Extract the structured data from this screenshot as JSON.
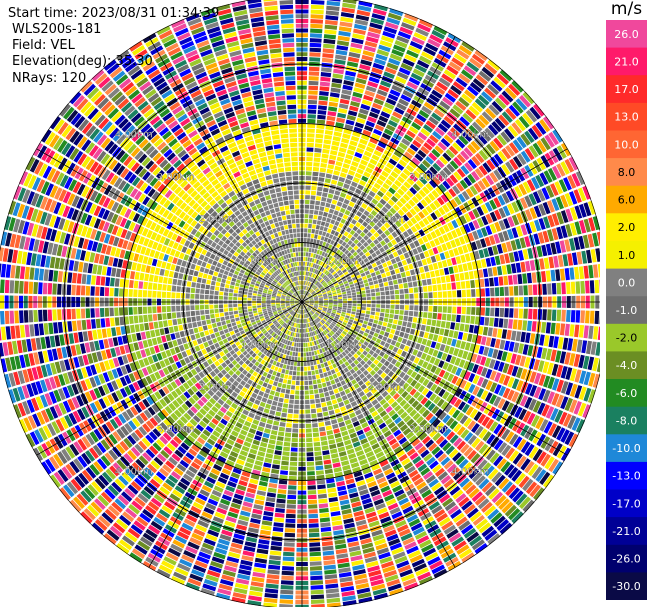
{
  "header": {
    "start_time": "Start time: 2023/08/31 01:34:39",
    "instrument": "WLS200s-181",
    "field": "Field: VEL",
    "elevation": "Elevation(deg): 35.30",
    "nrays": "NRays: 120"
  },
  "colorbar": {
    "unit": "m/s",
    "levels": [
      {
        "label": "26.0",
        "color": "#f0489c"
      },
      {
        "label": "21.0",
        "color": "#ff1a6a"
      },
      {
        "label": "17.0",
        "color": "#ff2a2a"
      },
      {
        "label": "13.0",
        "color": "#ff4a26"
      },
      {
        "label": "10.0",
        "color": "#ff6633"
      },
      {
        "label": "8.0",
        "color": "#ff8a4a"
      },
      {
        "label": "6.0",
        "color": "#ffaa00"
      },
      {
        "label": "2.0",
        "color": "#ffee00"
      },
      {
        "label": "1.0",
        "color": "#f5f000"
      },
      {
        "label": "0.0",
        "color": "#808080"
      },
      {
        "label": "-1.0",
        "color": "#6e6e6e"
      },
      {
        "label": "-2.0",
        "color": "#9ac82a"
      },
      {
        "label": "-4.0",
        "color": "#6b8e23"
      },
      {
        "label": "-6.0",
        "color": "#228b22"
      },
      {
        "label": "-8.0",
        "color": "#1a8060"
      },
      {
        "label": "-10.0",
        "color": "#1e88d8"
      },
      {
        "label": "-13.0",
        "color": "#0000ff"
      },
      {
        "label": "-17.0",
        "color": "#0000c8"
      },
      {
        "label": "-21.0",
        "color": "#000096"
      },
      {
        "label": "-26.0",
        "color": "#00006e"
      },
      {
        "label": "-30.0",
        "color": "#0a0a46"
      }
    ]
  },
  "chart_data": {
    "type": "heatmap",
    "field": "VEL",
    "units": "m/s",
    "rays": 120,
    "range_rings_km": [
      1.0,
      2.0,
      3.0,
      4.0
    ],
    "ring_label_text": [
      "1.00km",
      "2.00km",
      "3.00km",
      "4.00km"
    ],
    "zones": [
      {
        "range_km": [
          0,
          1.2
        ],
        "dominant": [
          "0.0",
          "-1.0",
          "-2.0",
          "1.0"
        ]
      },
      {
        "range_km": [
          1.2,
          2.2
        ],
        "dominant": [
          "0.0",
          "-1.0",
          "2.0",
          "-2.0"
        ]
      },
      {
        "range_km": [
          2.2,
          3.0
        ],
        "dominant": [
          "2.0",
          "1.0",
          "-2.0",
          "-4.0"
        ]
      },
      {
        "range_km": [
          3.0,
          4.3
        ],
        "dominant": [
          "random",
          "noise"
        ]
      }
    ]
  }
}
